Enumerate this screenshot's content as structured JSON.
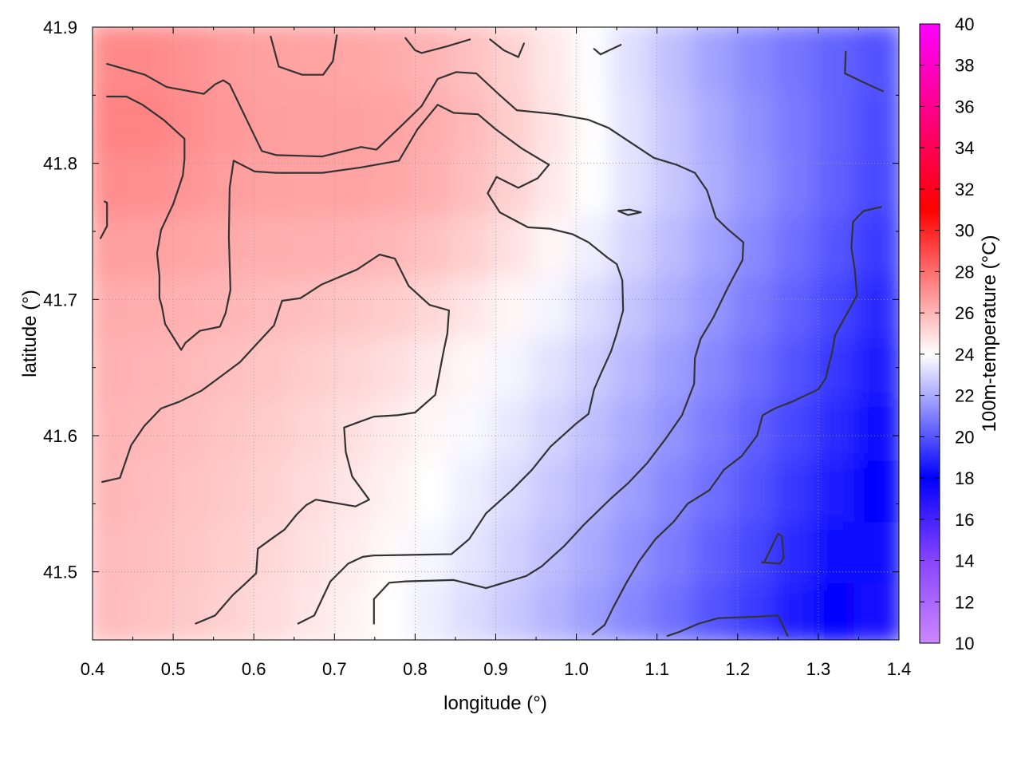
{
  "chart_data": {
    "type": "heatmap",
    "title": "",
    "xlabel": "longitude (°)",
    "ylabel": "latitude (°)",
    "colorbar_label": "100m-temperature (°C)",
    "xlim": [
      0.4,
      1.4
    ],
    "ylim": [
      41.45,
      41.9
    ],
    "x_ticks": [
      "0.4",
      "0.5",
      "0.6",
      "0.7",
      "0.8",
      "0.9",
      "1.0",
      "1.1",
      "1.2",
      "1.3",
      "1.4"
    ],
    "y_ticks": [
      "41.5",
      "41.6",
      "41.7",
      "41.8",
      "41.9"
    ],
    "colorbar_range": [
      10,
      40
    ],
    "colorbar_ticks": [
      "10",
      "12",
      "14",
      "16",
      "18",
      "20",
      "22",
      "24",
      "26",
      "28",
      "30",
      "32",
      "34",
      "36",
      "38",
      "40"
    ],
    "colormap": [
      {
        "value": 10,
        "color": "#cc88ff"
      },
      {
        "value": 14,
        "color": "#8844ff"
      },
      {
        "value": 18,
        "color": "#0000ff"
      },
      {
        "value": 24,
        "color": "#ffffff"
      },
      {
        "value": 31,
        "color": "#ff0000"
      },
      {
        "value": 40,
        "color": "#ff00ff"
      }
    ],
    "grid": true,
    "grid_style": "dotted",
    "temperature_trend": "warm (~26-27 °C) in the north-west, cooling to ~17 °C in the south-east",
    "contour_color": "#333333",
    "contours": [
      [
        [
          0.418,
          41.873
        ],
        [
          0.465,
          41.865
        ],
        [
          0.492,
          41.856
        ],
        [
          0.538,
          41.851
        ],
        [
          0.552,
          41.858
        ],
        [
          0.562,
          41.861
        ],
        [
          0.57,
          41.858
        ],
        [
          0.596,
          41.826
        ],
        [
          0.61,
          41.809
        ],
        [
          0.628,
          41.806
        ],
        [
          0.685,
          41.805
        ],
        [
          0.733,
          41.812
        ],
        [
          0.752,
          41.81
        ],
        [
          0.782,
          41.827
        ],
        [
          0.808,
          41.842
        ],
        [
          0.828,
          41.862
        ],
        [
          0.851,
          41.867
        ],
        [
          0.876,
          41.866
        ],
        [
          0.905,
          41.85
        ],
        [
          0.926,
          41.839
        ],
        [
          0.976,
          41.836
        ],
        [
          1.015,
          41.832
        ],
        [
          1.04,
          41.826
        ],
        [
          1.068,
          41.815
        ],
        [
          1.096,
          41.804
        ],
        [
          1.124,
          41.799
        ],
        [
          1.147,
          41.793
        ],
        [
          1.162,
          41.78
        ],
        [
          1.173,
          41.76
        ],
        [
          1.187,
          41.752
        ],
        [
          1.207,
          41.742
        ],
        [
          1.206,
          41.729
        ],
        [
          1.188,
          41.709
        ],
        [
          1.17,
          41.687
        ],
        [
          1.154,
          41.671
        ],
        [
          1.147,
          41.657
        ],
        [
          1.146,
          41.638
        ],
        [
          1.131,
          41.615
        ],
        [
          1.111,
          41.598
        ],
        [
          1.088,
          41.58
        ],
        [
          1.064,
          41.565
        ],
        [
          1.043,
          41.554
        ],
        [
          1.01,
          41.535
        ],
        [
          0.985,
          41.519
        ],
        [
          0.957,
          41.504
        ],
        [
          0.938,
          41.497
        ],
        [
          0.888,
          41.488
        ],
        [
          0.848,
          41.494
        ],
        [
          0.788,
          41.493
        ],
        [
          0.768,
          41.492
        ],
        [
          0.749,
          41.48
        ],
        [
          0.749,
          41.462
        ]
      ],
      [
        [
          0.418,
          41.849
        ],
        [
          0.442,
          41.849
        ],
        [
          0.462,
          41.843
        ],
        [
          0.488,
          41.832
        ],
        [
          0.514,
          41.818
        ],
        [
          0.514,
          41.803
        ],
        [
          0.512,
          41.791
        ],
        [
          0.5,
          41.77
        ],
        [
          0.485,
          41.751
        ],
        [
          0.48,
          41.734
        ],
        [
          0.483,
          41.717
        ],
        [
          0.483,
          41.701
        ],
        [
          0.486,
          41.695
        ],
        [
          0.49,
          41.682
        ],
        [
          0.51,
          41.663
        ],
        [
          0.515,
          41.668
        ],
        [
          0.533,
          41.677
        ],
        [
          0.558,
          41.68
        ],
        [
          0.565,
          41.69
        ],
        [
          0.571,
          41.707
        ],
        [
          0.569,
          41.746
        ],
        [
          0.57,
          41.782
        ],
        [
          0.575,
          41.802
        ],
        [
          0.601,
          41.794
        ],
        [
          0.628,
          41.793
        ],
        [
          0.685,
          41.793
        ],
        [
          0.733,
          41.797
        ],
        [
          0.78,
          41.802
        ],
        [
          0.803,
          41.825
        ],
        [
          0.828,
          41.843
        ],
        [
          0.848,
          41.837
        ],
        [
          0.878,
          41.836
        ],
        [
          0.9,
          41.825
        ],
        [
          0.932,
          41.811
        ],
        [
          0.966,
          41.799
        ],
        [
          0.952,
          41.789
        ],
        [
          0.928,
          41.782
        ],
        [
          0.901,
          41.79
        ],
        [
          0.89,
          41.778
        ],
        [
          0.905,
          41.764
        ],
        [
          0.94,
          41.753
        ],
        [
          0.967,
          41.752
        ],
        [
          0.995,
          41.748
        ],
        [
          1.015,
          41.742
        ],
        [
          1.038,
          41.731
        ],
        [
          1.05,
          41.726
        ],
        [
          1.057,
          41.714
        ],
        [
          1.058,
          41.692
        ],
        [
          1.05,
          41.675
        ],
        [
          1.043,
          41.662
        ],
        [
          1.03,
          41.645
        ],
        [
          1.022,
          41.634
        ],
        [
          1.015,
          41.616
        ],
        [
          1.0,
          41.609
        ],
        [
          0.968,
          41.592
        ],
        [
          0.945,
          41.575
        ],
        [
          0.92,
          41.56
        ],
        [
          0.888,
          41.543
        ],
        [
          0.867,
          41.524
        ],
        [
          0.845,
          41.513
        ],
        [
          0.748,
          41.512
        ],
        [
          0.735,
          41.511
        ],
        [
          0.717,
          41.506
        ],
        [
          0.695,
          41.493
        ],
        [
          0.675,
          41.468
        ],
        [
          0.655,
          41.462
        ]
      ],
      [
        [
          0.41,
          41.745
        ],
        [
          0.418,
          41.754
        ],
        [
          0.418,
          41.771
        ],
        [
          0.415,
          41.772
        ]
      ],
      [
        [
          0.412,
          41.566
        ],
        [
          0.434,
          41.569
        ],
        [
          0.448,
          41.593
        ],
        [
          0.464,
          41.607
        ],
        [
          0.485,
          41.62
        ],
        [
          0.508,
          41.625
        ],
        [
          0.535,
          41.633
        ],
        [
          0.558,
          41.643
        ],
        [
          0.583,
          41.654
        ],
        [
          0.603,
          41.667
        ],
        [
          0.625,
          41.681
        ],
        [
          0.635,
          41.699
        ],
        [
          0.658,
          41.701
        ],
        [
          0.684,
          41.711
        ],
        [
          0.728,
          41.722
        ],
        [
          0.756,
          41.733
        ],
        [
          0.775,
          41.73
        ],
        [
          0.792,
          41.71
        ],
        [
          0.818,
          41.696
        ],
        [
          0.842,
          41.692
        ],
        [
          0.84,
          41.675
        ],
        [
          0.835,
          41.661
        ],
        [
          0.825,
          41.63
        ],
        [
          0.8,
          41.617
        ],
        [
          0.778,
          41.615
        ],
        [
          0.749,
          41.614
        ],
        [
          0.735,
          41.611
        ],
        [
          0.712,
          41.606
        ],
        [
          0.714,
          41.588
        ],
        [
          0.722,
          41.57
        ],
        [
          0.743,
          41.553
        ],
        [
          0.726,
          41.548
        ],
        [
          0.677,
          41.553
        ],
        [
          0.665,
          41.549
        ],
        [
          0.653,
          41.542
        ],
        [
          0.638,
          41.531
        ],
        [
          0.626,
          41.526
        ],
        [
          0.605,
          41.517
        ],
        [
          0.603,
          41.499
        ],
        [
          0.587,
          41.49
        ],
        [
          0.574,
          41.483
        ],
        [
          0.552,
          41.468
        ],
        [
          0.528,
          41.462
        ]
      ],
      [
        [
          0.621,
          41.893
        ],
        [
          0.631,
          41.871
        ],
        [
          0.66,
          41.865
        ],
        [
          0.686,
          41.865
        ],
        [
          0.698,
          41.875
        ],
        [
          0.703,
          41.894
        ]
      ],
      [
        [
          0.788,
          41.892
        ],
        [
          0.8,
          41.883
        ],
        [
          0.808,
          41.881
        ],
        [
          0.84,
          41.886
        ],
        [
          0.868,
          41.891
        ]
      ],
      [
        [
          0.893,
          41.891
        ],
        [
          0.91,
          41.883
        ],
        [
          0.928,
          41.878
        ],
        [
          0.935,
          41.888
        ]
      ],
      [
        [
          1.022,
          41.884
        ],
        [
          1.03,
          41.88
        ],
        [
          1.055,
          41.887
        ]
      ],
      [
        [
          1.334,
          41.882
        ],
        [
          1.333,
          41.866
        ],
        [
          1.354,
          41.86
        ],
        [
          1.38,
          41.853
        ]
      ],
      [
        [
          1.052,
          41.765
        ],
        [
          1.066,
          41.766
        ],
        [
          1.08,
          41.764
        ],
        [
          1.064,
          41.762
        ],
        [
          1.052,
          41.765
        ]
      ],
      [
        [
          1.02,
          41.454
        ],
        [
          1.035,
          41.461
        ],
        [
          1.045,
          41.473
        ],
        [
          1.062,
          41.492
        ],
        [
          1.078,
          41.508
        ],
        [
          1.098,
          41.524
        ],
        [
          1.121,
          41.537
        ],
        [
          1.138,
          41.55
        ],
        [
          1.165,
          41.56
        ],
        [
          1.183,
          41.575
        ],
        [
          1.205,
          41.585
        ],
        [
          1.224,
          41.6
        ],
        [
          1.231,
          41.615
        ],
        [
          1.246,
          41.62
        ],
        [
          1.268,
          41.625
        ],
        [
          1.3,
          41.634
        ],
        [
          1.309,
          41.642
        ],
        [
          1.317,
          41.661
        ],
        [
          1.321,
          41.674
        ],
        [
          1.334,
          41.688
        ],
        [
          1.348,
          41.703
        ],
        [
          1.345,
          41.723
        ],
        [
          1.341,
          41.738
        ],
        [
          1.343,
          41.757
        ],
        [
          1.356,
          41.765
        ],
        [
          1.378,
          41.768
        ]
      ],
      [
        [
          1.23,
          41.507
        ],
        [
          1.252,
          41.506
        ],
        [
          1.257,
          41.51
        ],
        [
          1.255,
          41.526
        ],
        [
          1.25,
          41.528
        ],
        [
          1.233,
          41.507
        ],
        [
          1.23,
          41.507
        ]
      ],
      [
        [
          1.113,
          41.453
        ],
        [
          1.128,
          41.456
        ],
        [
          1.152,
          41.462
        ],
        [
          1.176,
          41.466
        ],
        [
          1.221,
          41.467
        ],
        [
          1.25,
          41.468
        ],
        [
          1.262,
          41.453
        ]
      ]
    ]
  }
}
